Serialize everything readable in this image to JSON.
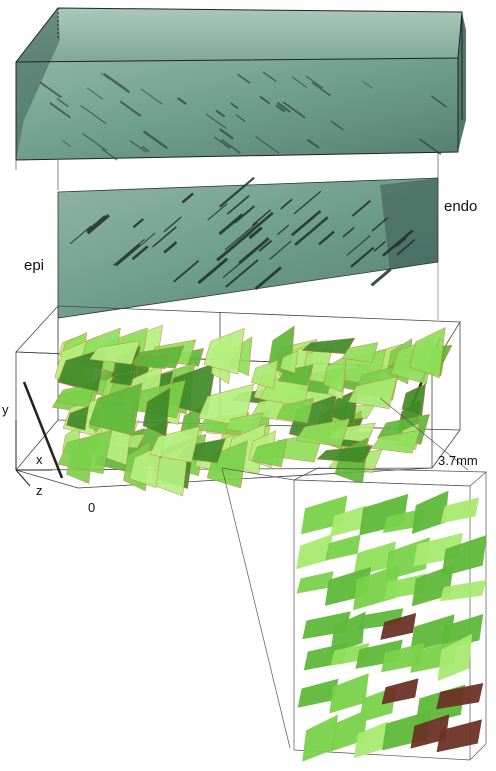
{
  "figure": {
    "labels": {
      "epi": "epi",
      "endo": "endo",
      "axis_y": "y",
      "axis_x": "x",
      "axis_z": "z",
      "scale_start": "0",
      "scale_end": "3.7mm"
    },
    "colors": {
      "tissue": "#6f9e8c",
      "tissue_dark": "#3e5f55",
      "tissue_light": "#a9c9b9",
      "cleavage": "#2a3a35",
      "surface_green": "#7ad24a",
      "surface_green_light": "#a8ea70",
      "surface_green_dark": "#3f8a28",
      "surface_edge": "#d0784a",
      "surface_brown": "#6b3326",
      "frame": "#333333"
    }
  }
}
